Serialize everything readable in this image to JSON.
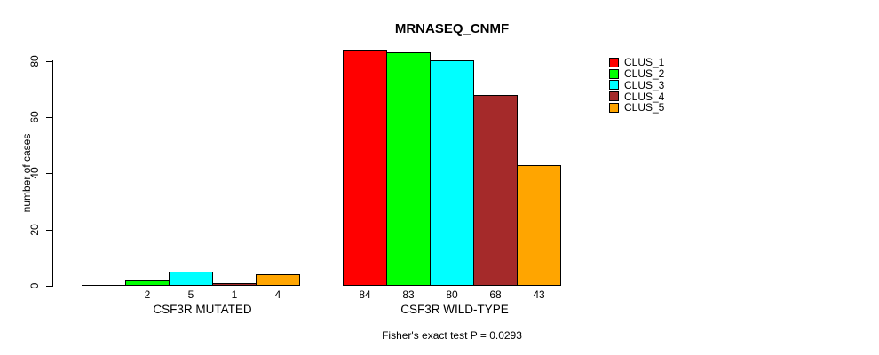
{
  "figure": {
    "title": "MRNASEQ_CNMF",
    "footnote": "Fisher's exact test P = 0.0293"
  },
  "chart_data": {
    "type": "bar",
    "title": "MRNASEQ_CNMF",
    "xlabel": "",
    "ylabel": "number of cases",
    "ylim": [
      0,
      80
    ],
    "yticks": [
      0,
      20,
      40,
      60,
      80
    ],
    "grid": false,
    "legend_position": "right",
    "series_names": [
      "CLUS_1",
      "CLUS_2",
      "CLUS_3",
      "CLUS_4",
      "CLUS_5"
    ],
    "series_colors": [
      "#FF0000",
      "#00FF00",
      "#00FFFF",
      "#A52A2A",
      "#FFA500"
    ],
    "groups": [
      {
        "label": "CSF3R MUTATED",
        "values": [
          0,
          2,
          5,
          1,
          4
        ],
        "bar_value_labels": [
          "",
          "2",
          "5",
          "1",
          "4"
        ]
      },
      {
        "label": "CSF3R WILD-TYPE",
        "values": [
          84,
          83,
          80,
          68,
          43
        ],
        "bar_value_labels": [
          "84",
          "83",
          "80",
          "68",
          "43"
        ]
      }
    ],
    "annotation": "Fisher's exact test P = 0.0293"
  }
}
